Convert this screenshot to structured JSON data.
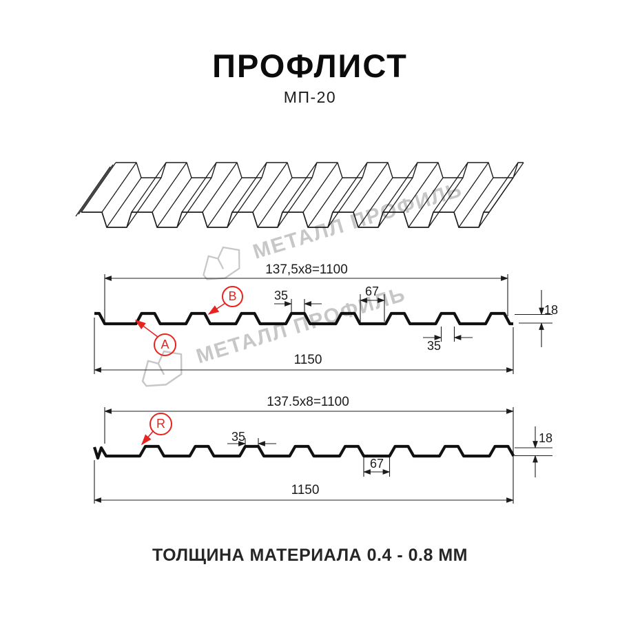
{
  "colors": {
    "accent": "#e8231e",
    "line": "#1c1c1c",
    "watermark": "#c7c7c7"
  },
  "header": {
    "title": "ПРОФЛИСТ",
    "subtitle": "МП-20"
  },
  "footer": {
    "text": "ТОЛЩИНА МАТЕРИАЛА 0.4 - 0.8 ММ"
  },
  "watermark": {
    "brand": "МЕТАЛЛ ПРОФИЛЬ"
  },
  "diagram_top": {
    "overall_width_formula": "137,5x8=1100",
    "overall_width": "1150",
    "rib_top_width": "35",
    "trough_width": "67",
    "profile_height": "18",
    "rib_top_width_bottom": "35",
    "label_a": "A",
    "label_b": "B"
  },
  "diagram_bottom": {
    "overall_width_formula": "137.5x8=1100",
    "overall_width": "1150",
    "rib_top_width": "35",
    "trough_width": "67",
    "profile_height": "18",
    "label_r": "R"
  }
}
